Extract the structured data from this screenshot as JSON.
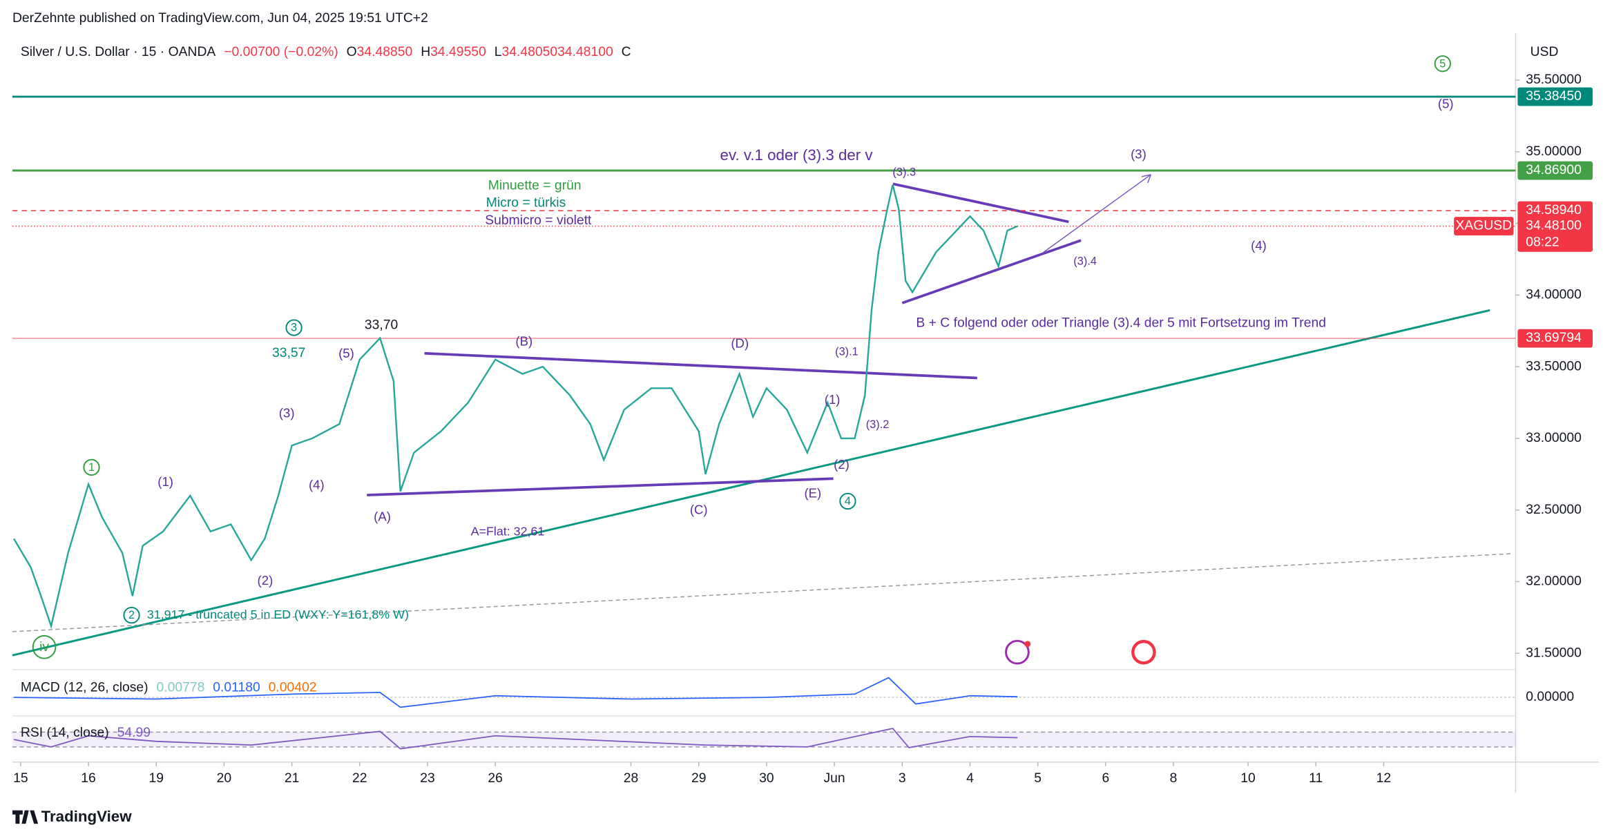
{
  "chart_data": {
    "type": "line",
    "header": "DerZehnte published on TradingView.com, Jun 04, 2025 19:51 UTC+2",
    "title": "Silver / U.S. Dollar · 15 · OANDA",
    "ohlc": [
      {
        "name": "O",
        "value": 34.4885,
        "label": "34.48850"
      },
      {
        "name": "H",
        "value": 34.4955,
        "label": "34.49550"
      },
      {
        "name": "L",
        "value": 34.4805,
        "label": "34.48050"
      },
      {
        "name": "C",
        "value": 34.481,
        "label": "34.48100"
      }
    ],
    "change": "−0.00700 (−0.02%)",
    "currency": "USD",
    "symbol": "XAGUSD",
    "countdown": "08:22",
    "brand": "TradingView",
    "series": [
      {
        "name": "XAGUSD",
        "color": "#26a69a",
        "x": [
          -0.1,
          0.15,
          0.3,
          0.45,
          0.7,
          1.0,
          1.2,
          1.5,
          1.65,
          1.8,
          2.1,
          2.5,
          2.8,
          3.1,
          3.4,
          3.6,
          3.8,
          4.0,
          4.3,
          4.7,
          5.0,
          5.3,
          5.5,
          5.6,
          5.8,
          6.2,
          6.6,
          7.0,
          7.4,
          7.7,
          8.1,
          8.4,
          8.6,
          8.9,
          9.3,
          9.6,
          10.0,
          10.1,
          10.3,
          10.6,
          10.8,
          11.0,
          11.3,
          11.6,
          11.9,
          12.1,
          12.3,
          12.45,
          12.55,
          12.65,
          12.78,
          12.86,
          12.95,
          13.05,
          13.15,
          13.5,
          13.8,
          14.0,
          14.2,
          14.42,
          14.55,
          14.7
        ],
        "values": [
          32.3,
          32.1,
          31.9,
          31.69,
          32.2,
          32.68,
          32.45,
          32.2,
          31.9,
          32.25,
          32.35,
          32.6,
          32.35,
          32.4,
          32.15,
          32.3,
          32.6,
          32.95,
          33.0,
          33.1,
          33.55,
          33.7,
          33.4,
          32.63,
          32.9,
          33.05,
          33.25,
          33.55,
          33.45,
          33.5,
          33.3,
          33.1,
          32.85,
          33.2,
          33.35,
          33.35,
          33.05,
          32.75,
          33.1,
          33.45,
          33.15,
          33.35,
          33.2,
          32.9,
          33.25,
          33.0,
          33.0,
          33.3,
          33.9,
          34.3,
          34.6,
          34.77,
          34.6,
          34.1,
          34.02,
          34.3,
          34.45,
          34.55,
          34.45,
          34.2,
          34.45,
          34.481
        ]
      }
    ],
    "ylim": [
      31.4,
      35.83
    ],
    "xlim": [
      -0.12,
      22.05
    ],
    "yticks": [
      {
        "value": 35.5,
        "label": "35.50000"
      },
      {
        "value": 35,
        "label": "35.00000"
      },
      {
        "value": 34.5,
        "label": "34.50000"
      },
      {
        "value": 34,
        "label": "34.00000"
      },
      {
        "value": 33.5,
        "label": "33.50000"
      },
      {
        "value": 33,
        "label": "33.00000"
      },
      {
        "value": 32.5,
        "label": "32.50000"
      },
      {
        "value": 32,
        "label": "32.00000"
      },
      {
        "value": 31.5,
        "label": "31.50000"
      }
    ],
    "xticks": [
      {
        "value": 0,
        "label": "15"
      },
      {
        "value": 1,
        "label": "16"
      },
      {
        "value": 2,
        "label": "19"
      },
      {
        "value": 3,
        "label": "20"
      },
      {
        "value": 4,
        "label": "21"
      },
      {
        "value": 5,
        "label": "22"
      },
      {
        "value": 6,
        "label": "23"
      },
      {
        "value": 7,
        "label": "26"
      },
      {
        "value": 9,
        "label": "28"
      },
      {
        "value": 10,
        "label": "29"
      },
      {
        "value": 11,
        "label": "30"
      },
      {
        "value": 12,
        "label": "Jun"
      },
      {
        "value": 13,
        "label": "3"
      },
      {
        "value": 14,
        "label": "4"
      },
      {
        "value": 15,
        "label": "5"
      },
      {
        "value": 16,
        "label": "6"
      },
      {
        "value": 17,
        "label": "8"
      },
      {
        "value": 18.1,
        "label": "10"
      },
      {
        "value": 19.1,
        "label": "11"
      },
      {
        "value": 20.1,
        "label": "12"
      }
    ],
    "hlines": [
      {
        "value": 35.3845,
        "label": "35.38450",
        "color": "#00897b"
      },
      {
        "value": 34.869,
        "label": "34.86900",
        "color": "#43a047"
      },
      {
        "value": 34.5894,
        "label": "34.58940",
        "color": "#f23645"
      },
      {
        "value": 34.481,
        "label": "34.48100",
        "color": "#f23645"
      },
      {
        "value": 33.69794,
        "label": "33.69794",
        "color": "#f23645"
      }
    ],
    "annotations": [
      "ev. v.1 oder (3).3 der v",
      "(3)",
      "(3).3",
      "Minuette = grün",
      "Micro = türkis",
      "Submicro = violett",
      "(4)",
      "(3).4",
      "B + C folgend oder  oder Triangle (3).4 der 5 mit Fortsetzung im Trend",
      "33,70",
      "33,57",
      "(B)",
      "(D)",
      "(5)",
      "(3).1",
      "(3)",
      "(1)",
      "(3).2",
      "(2)",
      "(4)",
      "(1)",
      "(E)",
      "(C)",
      "(A)",
      "A=Flat: 32,61",
      "(2)",
      "31,917 - truncated 5 in ED (WXY: Y=161,8% W)",
      "(5)"
    ],
    "wave_circles": [
      "5",
      "3",
      "1",
      "4",
      "2",
      "iv"
    ],
    "macd": {
      "title": "MACD (12, 26, close)",
      "readings": [
        {
          "value": 0.00778,
          "label": "0.00778",
          "color": "#80cbc4"
        },
        {
          "value": 0.0118,
          "label": "0.01180",
          "color": "#2962ff"
        },
        {
          "value": 0.00402,
          "label": "0.00402",
          "color": "#ff6d00"
        }
      ],
      "x": [
        -0.1,
        2,
        4,
        5.3,
        5.6,
        7,
        9,
        11,
        12.3,
        12.8,
        13.2,
        14,
        14.7
      ],
      "values": [
        0,
        -0.01,
        0.02,
        0.03,
        -0.06,
        0.01,
        -0.01,
        0,
        0.02,
        0.12,
        -0.04,
        0.01,
        0.004
      ],
      "ylim": [
        -0.1,
        0.15
      ],
      "yticks": [
        {
          "value": 0,
          "label": "0.00000"
        }
      ]
    },
    "rsi": {
      "title": "RSI (14, close)",
      "readings": [
        {
          "value": 54.99,
          "label": "54.99",
          "color": "#7e57c2"
        }
      ],
      "x": [
        -0.1,
        0.45,
        1.0,
        2,
        3.4,
        5.3,
        5.6,
        7,
        10.1,
        11.6,
        12.86,
        13.1,
        14,
        14.7
      ],
      "values": [
        50,
        30,
        60,
        45,
        35,
        72,
        25,
        60,
        35,
        30,
        80,
        28,
        58,
        55
      ],
      "ylim": [
        0,
        100
      ],
      "bands": [
        30,
        70
      ]
    }
  }
}
